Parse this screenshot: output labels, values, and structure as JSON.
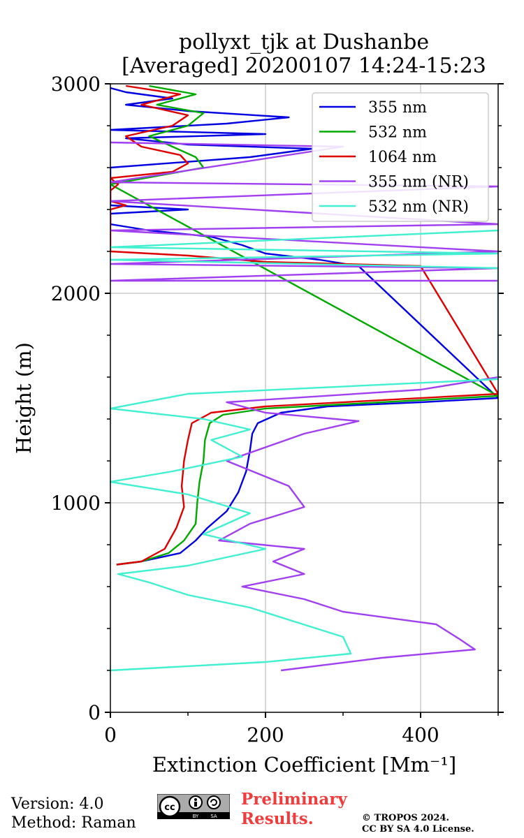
{
  "chart_data": {
    "type": "line",
    "title": [
      "pollyxt_tjk at Dushanbe",
      "[Averaged] 20200107 14:24-15:23"
    ],
    "xlabel": "Extinction Coefficient [Mm⁻¹]",
    "ylabel": "Height (m)",
    "xlim": [
      0,
      500
    ],
    "ylim": [
      0,
      3000
    ],
    "xticks": [
      0,
      200,
      400
    ],
    "yticks": [
      0,
      1000,
      2000,
      3000
    ],
    "legend_position": "top-right",
    "grid": true,
    "series": [
      {
        "name": "355 nm",
        "color": "#0000e0",
        "points": [
          [
            8,
            705
          ],
          [
            40,
            720
          ],
          [
            90,
            760
          ],
          [
            110,
            820
          ],
          [
            125,
            880
          ],
          [
            150,
            960
          ],
          [
            165,
            1050
          ],
          [
            175,
            1150
          ],
          [
            180,
            1250
          ],
          [
            183,
            1330
          ],
          [
            190,
            1380
          ],
          [
            220,
            1430
          ],
          [
            280,
            1460
          ],
          [
            400,
            1480
          ],
          [
            500,
            1500
          ],
          [
            320,
            2130
          ],
          [
            270,
            2160
          ],
          [
            200,
            2190
          ],
          [
            170,
            2230
          ],
          [
            130,
            2270
          ],
          [
            50,
            2300
          ],
          [
            0,
            2330
          ],
          [
            0,
            2380
          ],
          [
            100,
            2400
          ],
          [
            0,
            2420
          ],
          [
            0,
            2600
          ],
          [
            180,
            2650
          ],
          [
            260,
            2690
          ],
          [
            100,
            2710
          ],
          [
            20,
            2740
          ],
          [
            200,
            2760
          ],
          [
            0,
            2780
          ],
          [
            150,
            2810
          ],
          [
            230,
            2840
          ],
          [
            100,
            2870
          ],
          [
            20,
            2900
          ],
          [
            80,
            2930
          ],
          [
            20,
            2960
          ],
          [
            0,
            2980
          ]
        ]
      },
      {
        "name": "532 nm",
        "color": "#00aa00",
        "points": [
          [
            8,
            705
          ],
          [
            40,
            720
          ],
          [
            75,
            760
          ],
          [
            95,
            820
          ],
          [
            110,
            900
          ],
          [
            112,
            1000
          ],
          [
            115,
            1100
          ],
          [
            120,
            1200
          ],
          [
            122,
            1300
          ],
          [
            128,
            1380
          ],
          [
            145,
            1420
          ],
          [
            200,
            1450
          ],
          [
            300,
            1470
          ],
          [
            500,
            1510
          ],
          [
            0,
            2520
          ],
          [
            60,
            2560
          ],
          [
            120,
            2600
          ],
          [
            110,
            2650
          ],
          [
            80,
            2700
          ],
          [
            50,
            2750
          ],
          [
            100,
            2800
          ],
          [
            120,
            2860
          ],
          [
            60,
            2900
          ],
          [
            110,
            2950
          ],
          [
            50,
            2990
          ]
        ]
      },
      {
        "name": "1064 nm",
        "color": "#dd0000",
        "points": [
          [
            8,
            705
          ],
          [
            40,
            720
          ],
          [
            70,
            780
          ],
          [
            85,
            880
          ],
          [
            95,
            980
          ],
          [
            92,
            1080
          ],
          [
            95,
            1200
          ],
          [
            100,
            1300
          ],
          [
            105,
            1380
          ],
          [
            130,
            1430
          ],
          [
            200,
            1460
          ],
          [
            500,
            1520
          ],
          [
            400,
            2130
          ],
          [
            200,
            2150
          ],
          [
            100,
            2180
          ],
          [
            0,
            2200
          ],
          [
            0,
            2400
          ],
          [
            20,
            2420
          ],
          [
            0,
            2440
          ],
          [
            0,
            2490
          ],
          [
            10,
            2520
          ],
          [
            0,
            2550
          ],
          [
            80,
            2580
          ],
          [
            100,
            2620
          ],
          [
            90,
            2660
          ],
          [
            40,
            2700
          ],
          [
            20,
            2750
          ],
          [
            80,
            2800
          ],
          [
            100,
            2850
          ],
          [
            40,
            2900
          ],
          [
            90,
            2950
          ],
          [
            20,
            2990
          ]
        ]
      },
      {
        "name": "355 nm (NR)",
        "color": "#a040f0",
        "points": [
          [
            220,
            200
          ],
          [
            350,
            260
          ],
          [
            470,
            300
          ],
          [
            450,
            350
          ],
          [
            420,
            420
          ],
          [
            300,
            480
          ],
          [
            250,
            540
          ],
          [
            170,
            600
          ],
          [
            250,
            660
          ],
          [
            210,
            720
          ],
          [
            250,
            780
          ],
          [
            140,
            820
          ],
          [
            180,
            900
          ],
          [
            250,
            980
          ],
          [
            230,
            1080
          ],
          [
            150,
            1200
          ],
          [
            250,
            1330
          ],
          [
            320,
            1390
          ],
          [
            200,
            1430
          ],
          [
            150,
            1480
          ],
          [
            400,
            1540
          ],
          [
            500,
            1600
          ],
          [
            500,
            2060
          ],
          [
            0,
            2060
          ],
          [
            500,
            2120
          ],
          [
            0,
            2140
          ],
          [
            500,
            2200
          ],
          [
            0,
            2300
          ],
          [
            500,
            2330
          ],
          [
            0,
            2440
          ],
          [
            500,
            2510
          ],
          [
            0,
            2530
          ],
          [
            300,
            2700
          ],
          [
            0,
            2720
          ]
        ]
      },
      {
        "name": "532 nm (NR)",
        "color": "#40f0d0",
        "points": [
          [
            0,
            200
          ],
          [
            200,
            240
          ],
          [
            310,
            280
          ],
          [
            300,
            360
          ],
          [
            240,
            430
          ],
          [
            180,
            500
          ],
          [
            100,
            560
          ],
          [
            50,
            620
          ],
          [
            10,
            660
          ],
          [
            100,
            700
          ],
          [
            200,
            780
          ],
          [
            120,
            850
          ],
          [
            180,
            950
          ],
          [
            100,
            1040
          ],
          [
            0,
            1100
          ],
          [
            80,
            1150
          ],
          [
            170,
            1220
          ],
          [
            130,
            1300
          ],
          [
            180,
            1350
          ],
          [
            120,
            1400
          ],
          [
            0,
            1450
          ],
          [
            100,
            1520
          ],
          [
            500,
            1590
          ],
          [
            500,
            2120
          ],
          [
            0,
            2160
          ],
          [
            500,
            2190
          ],
          [
            0,
            2220
          ],
          [
            500,
            2300
          ]
        ]
      }
    ]
  },
  "footer": {
    "version": "Version: 4.0",
    "method": "Method: Raman",
    "preliminary_line1": "Preliminary",
    "preliminary_line2": "Results.",
    "copyright_line1": "© TROPOS 2024.",
    "copyright_line2": "CC BY SA 4.0 License.",
    "cc_label": "cc",
    "by_label": "BY",
    "sa_label": "SA"
  }
}
